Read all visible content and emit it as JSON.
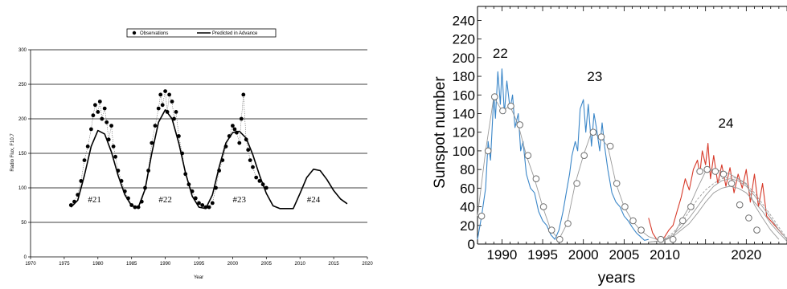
{
  "chart_data": [
    {
      "type": "scatter",
      "title": "",
      "xlabel": "Year",
      "ylabel": "Radio Flux, F10.7",
      "xlim": [
        1970,
        2020
      ],
      "ylim": [
        0,
        300
      ],
      "xticks": [
        1970,
        1975,
        1980,
        1985,
        1990,
        1995,
        2000,
        2005,
        2010,
        2015,
        2020
      ],
      "yticks": [
        0,
        50,
        100,
        150,
        200,
        250,
        300
      ],
      "grid": "horizontal",
      "legend_position": "top",
      "legend": [
        "Observations",
        "Predicted in Advance"
      ],
      "cycle_labels": [
        {
          "text": "#21",
          "x": 1979.5,
          "y": 77
        },
        {
          "text": "#22",
          "x": 1990.0,
          "y": 77
        },
        {
          "text": "#23",
          "x": 2001.0,
          "y": 77
        },
        {
          "text": "#24",
          "x": 2012.0,
          "y": 77
        }
      ],
      "series": [
        {
          "name": "Predicted in Advance",
          "kind": "line",
          "x": [
            1976.0,
            1977.0,
            1978.0,
            1979.0,
            1980.0,
            1981.0,
            1982.0,
            1983.0,
            1984.0,
            1985.0,
            1986.0,
            1987.0,
            1988.0,
            1989.0,
            1990.0,
            1991.0,
            1992.0,
            1993.0,
            1994.0,
            1995.0,
            1996.0,
            1997.0,
            1998.0,
            1999.0,
            2000.0,
            2001.0,
            2002.0,
            2003.0,
            2004.0,
            2005.0,
            2006.0,
            2007.0,
            2008.0,
            2009.0,
            2010.0,
            2011.0,
            2012.0,
            2013.0,
            2014.0,
            2015.0,
            2016.0,
            2017.0
          ],
          "y": [
            72,
            82,
            118,
            160,
            183,
            178,
            152,
            118,
            90,
            74,
            72,
            98,
            150,
            195,
            213,
            200,
            165,
            122,
            88,
            72,
            70,
            90,
            130,
            165,
            180,
            182,
            172,
            148,
            118,
            92,
            74,
            70,
            70,
            70,
            92,
            115,
            127,
            125,
            112,
            96,
            84,
            77
          ]
        },
        {
          "name": "Observations",
          "kind": "scatter",
          "x": [
            1976.0,
            1976.5,
            1977.0,
            1977.5,
            1978.0,
            1978.5,
            1979.0,
            1979.3,
            1979.6,
            1980.0,
            1980.3,
            1980.6,
            1981.0,
            1981.3,
            1981.6,
            1982.0,
            1982.3,
            1982.6,
            1983.0,
            1983.5,
            1984.0,
            1984.5,
            1985.0,
            1985.5,
            1986.0,
            1986.5,
            1987.0,
            1987.5,
            1988.0,
            1988.5,
            1989.0,
            1989.3,
            1989.6,
            1990.0,
            1990.3,
            1990.6,
            1991.0,
            1991.3,
            1991.6,
            1992.0,
            1992.5,
            1993.0,
            1993.5,
            1994.0,
            1994.5,
            1995.0,
            1995.5,
            1996.0,
            1996.5,
            1997.0,
            1997.5,
            1998.0,
            1998.5,
            1999.0,
            1999.5,
            2000.0,
            2000.3,
            2000.6,
            2001.0,
            2001.3,
            2001.6,
            2002.0,
            2002.3,
            2002.6,
            2003.0,
            2003.5,
            2004.0,
            2004.5,
            2005.0
          ],
          "y": [
            75,
            80,
            90,
            110,
            140,
            160,
            185,
            205,
            220,
            210,
            225,
            200,
            215,
            195,
            170,
            190,
            160,
            145,
            125,
            110,
            95,
            85,
            75,
            72,
            72,
            80,
            100,
            125,
            165,
            190,
            215,
            235,
            220,
            240,
            210,
            235,
            225,
            200,
            210,
            175,
            150,
            120,
            105,
            95,
            85,
            78,
            75,
            72,
            72,
            78,
            100,
            125,
            140,
            160,
            175,
            190,
            185,
            180,
            165,
            200,
            235,
            170,
            155,
            140,
            130,
            115,
            110,
            105,
            100
          ]
        }
      ]
    },
    {
      "type": "line",
      "title": "",
      "xlabel": "years",
      "ylabel": "Sunspot number",
      "xlim": [
        1987,
        2025
      ],
      "ylim": [
        0,
        255
      ],
      "xticks": [
        1990,
        1995,
        2000,
        2005,
        2010,
        2020
      ],
      "yticks": [
        0,
        20,
        40,
        60,
        80,
        100,
        120,
        140,
        160,
        180,
        200,
        220,
        240
      ],
      "grid": "off",
      "cycle_labels": [
        {
          "text": "22",
          "x": 1989.8,
          "y": 200
        },
        {
          "text": "23",
          "x": 2001.4,
          "y": 175
        },
        {
          "text": "24",
          "x": 2017.5,
          "y": 125
        }
      ],
      "colors": {
        "observed": "#3a86c8",
        "recent": "#d73a2a",
        "fit": "#9a9a9a",
        "marker": "#6e6e6e"
      },
      "series": [
        {
          "name": "",
          "kind": "monthly",
          "color": "#3a86c8",
          "x": [
            1987.0,
            1987.5,
            1988.0,
            1988.3,
            1988.6,
            1989.0,
            1989.2,
            1989.5,
            1989.8,
            1990.0,
            1990.3,
            1990.6,
            1991.0,
            1991.3,
            1991.6,
            1992.0,
            1992.3,
            1992.6,
            1993.0,
            1993.5,
            1994.0,
            1994.5,
            1995.0,
            1995.5,
            1996.0,
            1996.5,
            1997.0,
            1997.5,
            1998.0,
            1998.3,
            1998.6,
            1999.0,
            1999.3,
            1999.6,
            2000.0,
            2000.3,
            2000.6,
            2001.0,
            2001.3,
            2001.6,
            2002.0,
            2002.3,
            2002.6,
            2003.0,
            2003.5,
            2004.0,
            2004.5,
            2005.0,
            2005.5,
            2006.0,
            2006.5,
            2007.0,
            2007.5,
            2008.0
          ],
          "y": [
            5,
            30,
            60,
            110,
            90,
            160,
            135,
            185,
            150,
            188,
            140,
            175,
            145,
            160,
            125,
            140,
            100,
            110,
            75,
            60,
            55,
            35,
            25,
            20,
            10,
            5,
            15,
            35,
            60,
            75,
            95,
            110,
            100,
            145,
            155,
            120,
            150,
            105,
            140,
            125,
            100,
            130,
            105,
            80,
            55,
            45,
            40,
            30,
            25,
            18,
            12,
            8,
            4,
            5
          ]
        },
        {
          "name": "",
          "kind": "monthly",
          "color": "#d73a2a",
          "x": [
            2008.0,
            2008.5,
            2009.0,
            2009.5,
            2010.0,
            2010.5,
            2011.0,
            2011.5,
            2012.0,
            2012.5,
            2013.0,
            2013.5,
            2014.0,
            2014.3,
            2014.6,
            2015.0,
            2015.3,
            2015.6,
            2016.0,
            2016.5,
            2017.0,
            2017.5,
            2018.0,
            2018.5,
            2019.0,
            2019.5,
            2020.0,
            2020.5,
            2021.0,
            2021.5,
            2022.0,
            2022.5,
            2023.0,
            2023.5,
            2024.0,
            2024.5
          ],
          "y": [
            28,
            12,
            5,
            3,
            8,
            15,
            20,
            35,
            50,
            70,
            58,
            80,
            90,
            75,
            100,
            85,
            108,
            70,
            95,
            65,
            85,
            62,
            82,
            55,
            75,
            60,
            80,
            45,
            75,
            40,
            65,
            30,
            25,
            20,
            15,
            10
          ]
        },
        {
          "name": "",
          "kind": "smoothed",
          "x": [
            1987.0,
            1988.0,
            1989.0,
            1990.0,
            1991.0,
            1992.0,
            1993.0,
            1994.0,
            1995.0,
            1996.0,
            1997.0,
            1998.0,
            1999.0,
            2000.0,
            2001.0,
            2002.0,
            2003.0,
            2004.0,
            2005.0,
            2006.0,
            2007.0,
            2008.0,
            2009.0,
            2010.0,
            2011.0,
            2012.0,
            2013.0,
            2014.0,
            2015.0,
            2016.0,
            2017.0,
            2018.0,
            2019.0,
            2020.0,
            2021.0,
            2022.0,
            2023.0,
            2024.0
          ],
          "y": [
            30,
            100,
            158,
            143,
            148,
            128,
            95,
            70,
            40,
            15,
            5,
            22,
            65,
            95,
            120,
            115,
            105,
            65,
            40,
            25,
            15,
            8,
            5,
            5,
            8,
            25,
            40,
            60,
            78,
            80,
            78,
            75,
            70,
            65,
            42,
            28,
            15,
            5
          ]
        },
        {
          "name": "",
          "kind": "fit",
          "x": [
            2008.0,
            2009.0,
            2010.0,
            2011.0,
            2012.0,
            2013.0,
            2014.0,
            2015.0,
            2016.0,
            2017.0,
            2018.0,
            2019.0,
            2020.0,
            2021.0,
            2022.0,
            2023.0,
            2024.0,
            2025.0
          ],
          "y": [
            2,
            3,
            5,
            10,
            18,
            28,
            40,
            52,
            62,
            68,
            70,
            68,
            62,
            52,
            40,
            28,
            15,
            5
          ]
        },
        {
          "name": "",
          "kind": "fit",
          "x": [
            2008.0,
            2009.0,
            2010.0,
            2011.0,
            2012.0,
            2013.0,
            2014.0,
            2015.0,
            2016.0,
            2017.0,
            2018.0,
            2019.0,
            2020.0,
            2021.0,
            2022.0,
            2023.0,
            2024.0,
            2025.0
          ],
          "y": [
            2,
            3,
            6,
            12,
            22,
            35,
            48,
            58,
            65,
            70,
            72,
            70,
            64,
            55,
            43,
            31,
            18,
            6
          ]
        },
        {
          "name": "",
          "kind": "fit",
          "x": [
            2008.0,
            2009.0,
            2010.0,
            2011.0,
            2012.0,
            2013.0,
            2014.0,
            2015.0,
            2016.0,
            2017.0,
            2018.0,
            2019.0,
            2020.0,
            2021.0,
            2022.0,
            2023.0,
            2024.0,
            2025.0
          ],
          "y": [
            2,
            3,
            4,
            8,
            15,
            22,
            33,
            45,
            55,
            60,
            62,
            60,
            55,
            45,
            35,
            22,
            12,
            3
          ]
        }
      ],
      "markers": {
        "x": [
          1987.5,
          1988.3,
          1989.1,
          1990.1,
          1991.1,
          1992.2,
          1993.2,
          1994.2,
          1995.1,
          1996.1,
          1997.1,
          1998.1,
          1999.2,
          2000.1,
          2001.2,
          2002.2,
          2003.3,
          2004.1,
          2005.1,
          2006.1,
          2007.1,
          2009.5,
          2011.0,
          2012.2,
          2013.2,
          2014.3,
          2015.2,
          2016.2,
          2017.2,
          2018.2,
          2019.2,
          2020.3,
          2021.3
        ],
        "y": [
          30,
          100,
          158,
          143,
          148,
          128,
          95,
          70,
          40,
          15,
          5,
          22,
          65,
          95,
          120,
          115,
          105,
          65,
          40,
          25,
          15,
          5,
          5,
          25,
          40,
          78,
          80,
          78,
          75,
          65,
          42,
          28,
          15
        ]
      }
    }
  ]
}
